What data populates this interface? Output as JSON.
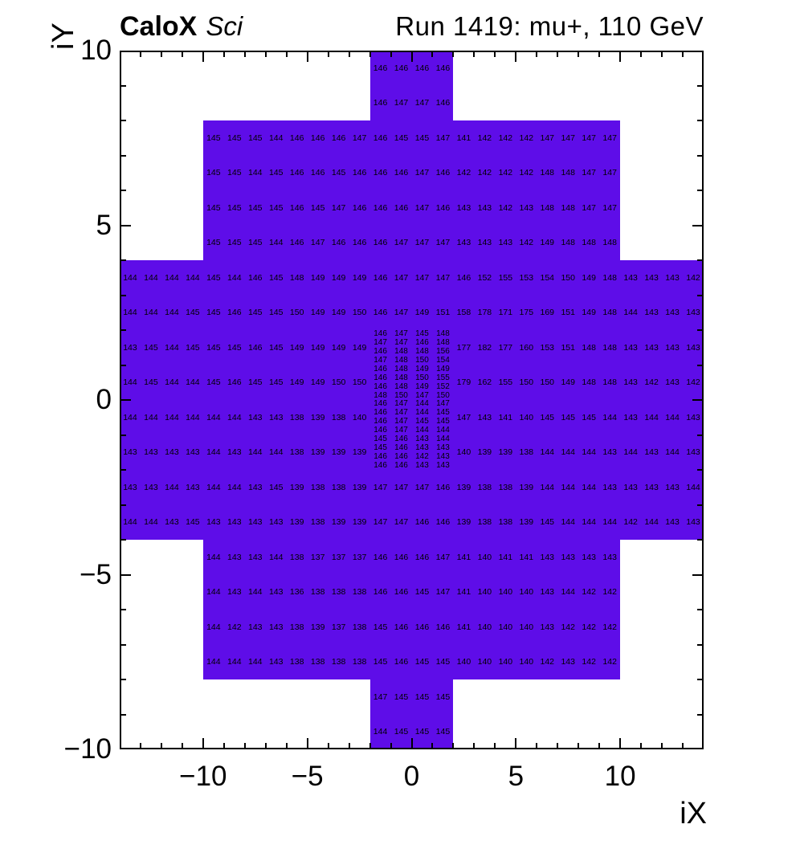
{
  "header": {
    "experiment": "CaloX",
    "tag": "Sci",
    "run_info": "Run 1419: mu+, 110 GeV"
  },
  "chart_data": {
    "type": "heatmap",
    "title": "CaloX Sci",
    "right_title": "Run 1419: mu+, 110 GeV",
    "xlabel": "iX",
    "ylabel": "iY",
    "x_range": [
      -14,
      14
    ],
    "y_range": [
      -10,
      10
    ],
    "grid": false,
    "legend": "none",
    "cell_color": "#5E0DE8",
    "cell_text_color": "#000000",
    "minor_tick_step": 1,
    "x_ticks": [
      {
        "v": -10,
        "label": "−10"
      },
      {
        "v": -5,
        "label": "−5"
      },
      {
        "v": 0,
        "label": "0"
      },
      {
        "v": 5,
        "label": "5"
      },
      {
        "v": 10,
        "label": "10"
      }
    ],
    "y_ticks": [
      {
        "v": 10,
        "label": "10"
      },
      {
        "v": 5,
        "label": "5"
      },
      {
        "v": 0,
        "label": "0"
      },
      {
        "v": -5,
        "label": "−5"
      },
      {
        "v": -10,
        "label": "−10"
      }
    ],
    "fill_regions": [
      {
        "x0": -2,
        "x1": 2,
        "y0": 8,
        "y1": 10
      },
      {
        "x0": -10,
        "x1": 10,
        "y0": 4,
        "y1": 8
      },
      {
        "x0": -14,
        "x1": 14,
        "y0": -4,
        "y1": 4
      },
      {
        "x0": -10,
        "x1": 10,
        "y0": -8,
        "y1": -4
      },
      {
        "x0": -2,
        "x1": 2,
        "y0": -10,
        "y1": -8
      }
    ],
    "rows": [
      {
        "y": 9.5,
        "x0": -2,
        "v": [
          146,
          146,
          146,
          146
        ]
      },
      {
        "y": 8.5,
        "x0": -2,
        "v": [
          146,
          147,
          147,
          146
        ]
      },
      {
        "y": 7.5,
        "x0": -10,
        "v": [
          145,
          145,
          145,
          144,
          146,
          146,
          146,
          147,
          146,
          145,
          145,
          147,
          141,
          142,
          142,
          142,
          147,
          147,
          147,
          147
        ]
      },
      {
        "y": 6.5,
        "x0": -10,
        "v": [
          145,
          145,
          144,
          145,
          146,
          146,
          145,
          146,
          146,
          146,
          147,
          146,
          142,
          142,
          142,
          142,
          148,
          148,
          147,
          147
        ]
      },
      {
        "y": 5.5,
        "x0": -10,
        "v": [
          145,
          145,
          145,
          145,
          146,
          145,
          147,
          146,
          146,
          146,
          147,
          146,
          143,
          143,
          142,
          143,
          148,
          148,
          147,
          147
        ]
      },
      {
        "y": 4.5,
        "x0": -10,
        "v": [
          145,
          145,
          145,
          144,
          146,
          147,
          146,
          146,
          146,
          147,
          147,
          147,
          143,
          143,
          143,
          142,
          149,
          148,
          148,
          148
        ]
      },
      {
        "y": 3.5,
        "x0": -14,
        "v": [
          144,
          144,
          144,
          144,
          145,
          144,
          146,
          145,
          148,
          149,
          149,
          149,
          146,
          147,
          147,
          147,
          146,
          152,
          155,
          153,
          154,
          150,
          149,
          148,
          143,
          143,
          143,
          142
        ]
      },
      {
        "y": 2.5,
        "x0": -14,
        "v": [
          144,
          144,
          144,
          145,
          145,
          146,
          145,
          145,
          150,
          149,
          149,
          150,
          146,
          147,
          149,
          151,
          158,
          178,
          171,
          175,
          169,
          151,
          149,
          148,
          144,
          143,
          143,
          143
        ]
      },
      {
        "y": 1.5,
        "x0": -14,
        "v": [
          143,
          145,
          144,
          145,
          145,
          145,
          146,
          145,
          149,
          149,
          149,
          149
        ]
      },
      {
        "y": 1.5,
        "x0": 2,
        "v": [
          177,
          182,
          177,
          160,
          153,
          151,
          148,
          148,
          143,
          143,
          143,
          143
        ]
      },
      {
        "y": 0.5,
        "x0": -14,
        "v": [
          144,
          145,
          144,
          144,
          145,
          146,
          145,
          145,
          149,
          149,
          150,
          150
        ]
      },
      {
        "y": 0.5,
        "x0": 2,
        "v": [
          179,
          162,
          155,
          150,
          150,
          149,
          148,
          148,
          143,
          142,
          143,
          142
        ]
      },
      {
        "y": -0.5,
        "x0": -14,
        "v": [
          144,
          144,
          144,
          144,
          144,
          144,
          143,
          143,
          138,
          139,
          138,
          140
        ]
      },
      {
        "y": -0.5,
        "x0": 2,
        "v": [
          147,
          143,
          141,
          140,
          145,
          145,
          145,
          144,
          143,
          144,
          144,
          143
        ]
      },
      {
        "y": -1.5,
        "x0": -14,
        "v": [
          143,
          143,
          143,
          143,
          144,
          143,
          144,
          144,
          138,
          139,
          139,
          139
        ]
      },
      {
        "y": -1.5,
        "x0": 2,
        "v": [
          140,
          139,
          139,
          138,
          144,
          144,
          144,
          143,
          144,
          143,
          144,
          143
        ]
      },
      {
        "y": -2.5,
        "x0": -14,
        "v": [
          143,
          143,
          144,
          143,
          144,
          144,
          143,
          145,
          139,
          138,
          138,
          139,
          147,
          147,
          147,
          146,
          139,
          138,
          138,
          139,
          144,
          144,
          144,
          143,
          143,
          143,
          143,
          144
        ]
      },
      {
        "y": -3.5,
        "x0": -14,
        "v": [
          144,
          144,
          143,
          145,
          143,
          143,
          143,
          143,
          139,
          138,
          139,
          139,
          147,
          147,
          146,
          146,
          139,
          138,
          138,
          139,
          145,
          144,
          144,
          144,
          142,
          144,
          143,
          143
        ]
      },
      {
        "y": -4.5,
        "x0": -10,
        "v": [
          144,
          143,
          143,
          144,
          138,
          137,
          137,
          137,
          146,
          146,
          146,
          147,
          141,
          140,
          141,
          141,
          143,
          143,
          143,
          143
        ]
      },
      {
        "y": -5.5,
        "x0": -10,
        "v": [
          144,
          143,
          144,
          143,
          136,
          138,
          138,
          138,
          146,
          146,
          145,
          147,
          141,
          140,
          140,
          140,
          143,
          144,
          142,
          142
        ]
      },
      {
        "y": -6.5,
        "x0": -10,
        "v": [
          144,
          142,
          143,
          143,
          138,
          139,
          137,
          138,
          145,
          146,
          146,
          146,
          141,
          140,
          140,
          140,
          143,
          142,
          142,
          142
        ]
      },
      {
        "y": -7.5,
        "x0": -10,
        "v": [
          144,
          144,
          144,
          143,
          138,
          138,
          138,
          138,
          145,
          146,
          145,
          145,
          140,
          140,
          140,
          140,
          142,
          143,
          142,
          142
        ]
      },
      {
        "y": -8.5,
        "x0": -2,
        "v": [
          147,
          145,
          145,
          145
        ]
      },
      {
        "y": -9.5,
        "x0": -2,
        "v": [
          144,
          145,
          145,
          145
        ]
      }
    ],
    "fine_block": {
      "x0": -2,
      "y_top": 2,
      "cell_w": 1,
      "cell_h": 0.25,
      "rows": [
        [
          146,
          147,
          145,
          148
        ],
        [
          147,
          147,
          146,
          148
        ],
        [
          146,
          148,
          148,
          156
        ],
        [
          147,
          148,
          150,
          154
        ],
        [
          146,
          148,
          149,
          149
        ],
        [
          146,
          148,
          150,
          155
        ],
        [
          146,
          148,
          149,
          152
        ],
        [
          148,
          150,
          147,
          150
        ],
        [
          146,
          147,
          144,
          147
        ],
        [
          146,
          147,
          144,
          145
        ],
        [
          146,
          147,
          145,
          145
        ],
        [
          146,
          147,
          144,
          144
        ],
        [
          145,
          146,
          143,
          144
        ],
        [
          145,
          146,
          143,
          143
        ],
        [
          146,
          146,
          142,
          143
        ],
        [
          146,
          146,
          143,
          143
        ]
      ]
    }
  }
}
